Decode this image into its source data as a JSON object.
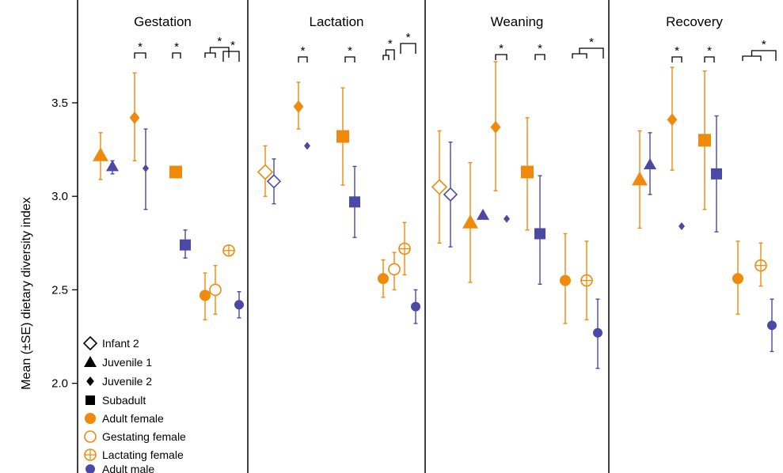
{
  "chart_data": {
    "type": "scatter",
    "title": "",
    "ylabel": "Mean (±SE) dietary diversity index",
    "xlabel": "",
    "ylim": [
      1.7,
      3.98
    ],
    "yticks": [
      2.0,
      2.5,
      3.0,
      3.5
    ],
    "ytick_labels": [
      "2.0",
      "2.5",
      "3.0",
      "3.5"
    ],
    "grid": false,
    "legend_position": "bottom-left",
    "colors": {
      "orange": "#F08A0C",
      "blue": "#4A4AA6"
    },
    "panels": [
      "Gestation",
      "Lactation",
      "Weaning",
      "Recovery"
    ],
    "legend": [
      {
        "label": "Infant 2",
        "marker": "diamond-open",
        "color": "#000000"
      },
      {
        "label": "Juvenile 1",
        "marker": "triangle",
        "color": "#000000"
      },
      {
        "label": "Juvenile 2",
        "marker": "diamond-small",
        "color": "#000000"
      },
      {
        "label": "Subadult",
        "marker": "square",
        "color": "#000000"
      },
      {
        "label": "Adult female",
        "marker": "circle",
        "color": "#F08A0C"
      },
      {
        "label": "Gestating female",
        "marker": "circle-open",
        "color": "#F08A0C"
      },
      {
        "label": "Lactating female",
        "marker": "circle-plus",
        "color": "#F08A0C"
      },
      {
        "label": "Adult male",
        "marker": "circle-small",
        "color": "#4A4AA6"
      }
    ],
    "series": [
      {
        "panel": "Gestation",
        "points": [
          {
            "group": "Juvenile 1",
            "sex": "female",
            "mean": 3.22,
            "se_low": 3.09,
            "se_high": 3.34
          },
          {
            "group": "Juvenile 1",
            "sex": "male",
            "mean": 3.16,
            "se_low": 3.12,
            "se_high": 3.19
          },
          {
            "group": "Juvenile 2",
            "sex": "female",
            "mean": 3.42,
            "se_low": 3.19,
            "se_high": 3.66
          },
          {
            "group": "Juvenile 2",
            "sex": "male",
            "mean": 3.15,
            "se_low": 2.93,
            "se_high": 3.36
          },
          {
            "group": "Subadult",
            "sex": "female",
            "mean": 3.13,
            "se_low": 3.13,
            "se_high": 3.13
          },
          {
            "group": "Subadult",
            "sex": "male",
            "mean": 2.74,
            "se_low": 2.67,
            "se_high": 2.82
          },
          {
            "group": "Adult female",
            "sex": "female",
            "mean": 2.47,
            "se_low": 2.34,
            "se_high": 2.59
          },
          {
            "group": "Gestating female",
            "sex": "female",
            "mean": 2.5,
            "se_low": 2.37,
            "se_high": 2.63
          },
          {
            "group": "Lactating female",
            "sex": "female",
            "mean": 2.71,
            "se_low": 2.71,
            "se_high": 2.71
          },
          {
            "group": "Adult male",
            "sex": "male",
            "mean": 2.42,
            "se_low": 2.35,
            "se_high": 2.49
          }
        ]
      },
      {
        "panel": "Lactation",
        "points": [
          {
            "group": "Infant 2",
            "sex": "female",
            "mean": 3.13,
            "se_low": 3.0,
            "se_high": 3.27
          },
          {
            "group": "Infant 2",
            "sex": "male",
            "mean": 3.08,
            "se_low": 2.96,
            "se_high": 3.2
          },
          {
            "group": "Juvenile 2",
            "sex": "female",
            "mean": 3.48,
            "se_low": 3.36,
            "se_high": 3.61
          },
          {
            "group": "Juvenile 2",
            "sex": "male",
            "mean": 3.27,
            "se_low": 3.27,
            "se_high": 3.27
          },
          {
            "group": "Subadult",
            "sex": "female",
            "mean": 3.32,
            "se_low": 3.06,
            "se_high": 3.58
          },
          {
            "group": "Subadult",
            "sex": "male",
            "mean": 2.97,
            "se_low": 2.78,
            "se_high": 3.16
          },
          {
            "group": "Adult female",
            "sex": "female",
            "mean": 2.56,
            "se_low": 2.46,
            "se_high": 2.66
          },
          {
            "group": "Gestating female",
            "sex": "female",
            "mean": 2.61,
            "se_low": 2.5,
            "se_high": 2.7
          },
          {
            "group": "Lactating female",
            "sex": "female",
            "mean": 2.72,
            "se_low": 2.58,
            "se_high": 2.86
          },
          {
            "group": "Adult male",
            "sex": "male",
            "mean": 2.41,
            "se_low": 2.32,
            "se_high": 2.5
          }
        ]
      },
      {
        "panel": "Weaning",
        "points": [
          {
            "group": "Infant 2",
            "sex": "female",
            "mean": 3.05,
            "se_low": 2.75,
            "se_high": 3.35
          },
          {
            "group": "Infant 2",
            "sex": "male",
            "mean": 3.01,
            "se_low": 2.73,
            "se_high": 3.29
          },
          {
            "group": "Juvenile 1",
            "sex": "female",
            "mean": 2.86,
            "se_low": 2.54,
            "se_high": 3.18
          },
          {
            "group": "Juvenile 1",
            "sex": "male",
            "mean": 2.9,
            "se_low": 2.9,
            "se_high": 2.9
          },
          {
            "group": "Juvenile 2",
            "sex": "female",
            "mean": 3.37,
            "se_low": 3.03,
            "se_high": 3.72
          },
          {
            "group": "Juvenile 2",
            "sex": "male",
            "mean": 2.88,
            "se_low": 2.88,
            "se_high": 2.88
          },
          {
            "group": "Subadult",
            "sex": "female",
            "mean": 3.13,
            "se_low": 2.82,
            "se_high": 3.42
          },
          {
            "group": "Subadult",
            "sex": "male",
            "mean": 2.8,
            "se_low": 2.53,
            "se_high": 3.11
          },
          {
            "group": "Adult female",
            "sex": "female",
            "mean": 2.55,
            "se_low": 2.32,
            "se_high": 2.8
          },
          {
            "group": "Lactating female",
            "sex": "female",
            "mean": 2.55,
            "se_low": 2.34,
            "se_high": 2.76
          },
          {
            "group": "Adult male",
            "sex": "male",
            "mean": 2.27,
            "se_low": 2.08,
            "se_high": 2.45
          }
        ]
      },
      {
        "panel": "Recovery",
        "points": [
          {
            "group": "Juvenile 1",
            "sex": "female",
            "mean": 3.09,
            "se_low": 2.83,
            "se_high": 3.35
          },
          {
            "group": "Juvenile 1",
            "sex": "male",
            "mean": 3.17,
            "se_low": 3.01,
            "se_high": 3.34
          },
          {
            "group": "Juvenile 2",
            "sex": "female",
            "mean": 3.41,
            "se_low": 3.14,
            "se_high": 3.69
          },
          {
            "group": "Juvenile 2",
            "sex": "male",
            "mean": 2.84,
            "se_low": 2.84,
            "se_high": 2.84
          },
          {
            "group": "Subadult",
            "sex": "female",
            "mean": 3.3,
            "se_low": 2.93,
            "se_high": 3.67
          },
          {
            "group": "Subadult",
            "sex": "male",
            "mean": 3.12,
            "se_low": 2.81,
            "se_high": 3.43
          },
          {
            "group": "Adult female",
            "sex": "female",
            "mean": 2.56,
            "se_low": 2.37,
            "se_high": 2.76
          },
          {
            "group": "Lactating female",
            "sex": "female",
            "mean": 2.63,
            "se_low": 2.52,
            "se_high": 2.75
          },
          {
            "group": "Adult male",
            "sex": "male",
            "mean": 2.31,
            "se_low": 2.17,
            "se_high": 2.45
          }
        ]
      }
    ],
    "significance": [
      {
        "panel": "Gestation",
        "label": "*",
        "compares": [
          "Juvenile 2 female",
          "Juvenile 2 male"
        ]
      },
      {
        "panel": "Gestation",
        "label": "*",
        "compares": [
          "Subadult female",
          "Subadult male"
        ]
      },
      {
        "panel": "Gestation",
        "label": "*",
        "compares": [
          "Adult female + Gestating female",
          "Lactating female"
        ]
      },
      {
        "panel": "Gestation",
        "label": "*",
        "compares": [
          "Lactating female",
          "Adult male"
        ]
      },
      {
        "panel": "Lactation",
        "label": "*",
        "compares": [
          "Juvenile 2 female",
          "Juvenile 2 male"
        ]
      },
      {
        "panel": "Lactation",
        "label": "*",
        "compares": [
          "Subadult female",
          "Subadult male"
        ]
      },
      {
        "panel": "Lactation",
        "label": "*",
        "compares": [
          "Adult female + Gestating female",
          "Lactating female"
        ]
      },
      {
        "panel": "Lactation",
        "label": "*",
        "compares": [
          "Lactating female",
          "Adult male"
        ]
      },
      {
        "panel": "Weaning",
        "label": "*",
        "compares": [
          "Juvenile 2 female",
          "Juvenile 2 male"
        ]
      },
      {
        "panel": "Weaning",
        "label": "*",
        "compares": [
          "Subadult female",
          "Subadult male"
        ]
      },
      {
        "panel": "Weaning",
        "label": "*",
        "compares": [
          "Adult female + Lactating female",
          "Adult male"
        ]
      },
      {
        "panel": "Recovery",
        "label": "*",
        "compares": [
          "Juvenile 2 female",
          "Juvenile 2 male"
        ]
      },
      {
        "panel": "Recovery",
        "label": "*",
        "compares": [
          "Subadult female",
          "Subadult male"
        ]
      },
      {
        "panel": "Recovery",
        "label": "*",
        "compares": [
          "Adult female + Lactating female",
          "Adult male"
        ]
      }
    ]
  }
}
